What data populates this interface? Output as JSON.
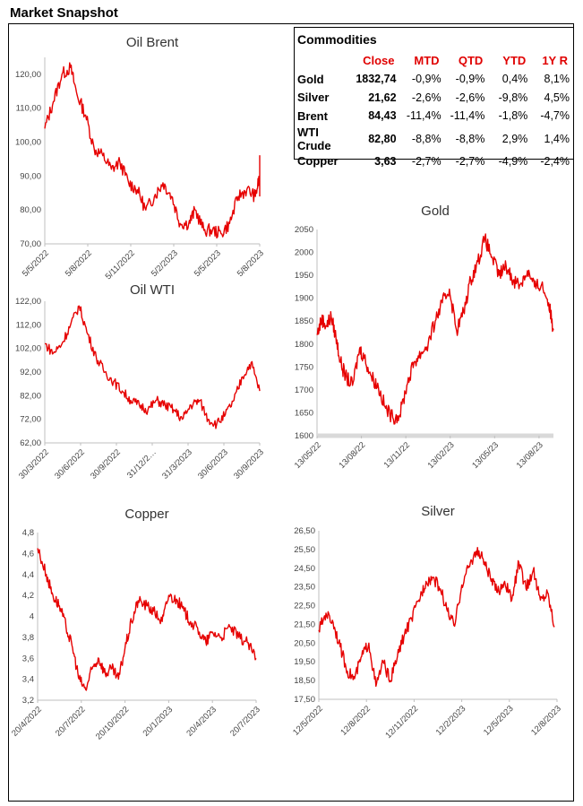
{
  "page_title": "Market Snapshot",
  "table": {
    "title": "Commodities",
    "headers": [
      "",
      "Close",
      "MTD",
      "QTD",
      "YTD",
      "1Y R"
    ],
    "rows": [
      {
        "name": "Gold",
        "close": "1832,74",
        "mtd": "-0,9%",
        "qtd": "-0,9%",
        "ytd": "0,4%",
        "r1y": "8,1%"
      },
      {
        "name": "Silver",
        "close": "21,62",
        "mtd": "-2,6%",
        "qtd": "-2,6%",
        "ytd": "-9,8%",
        "r1y": "4,5%"
      },
      {
        "name": "Brent",
        "close": "84,43",
        "mtd": "-11,4%",
        "qtd": "-11,4%",
        "ytd": "-1,8%",
        "r1y": "-4,7%"
      },
      {
        "name": "WTI Crude",
        "close": "82,80",
        "mtd": "-8,8%",
        "qtd": "-8,8%",
        "ytd": "2,9%",
        "r1y": "1,4%"
      },
      {
        "name": "Copper",
        "close": "3,63",
        "mtd": "-2,7%",
        "qtd": "-2,7%",
        "ytd": "-4,9%",
        "r1y": "-2,4%"
      }
    ]
  },
  "colors": {
    "series": "#e60000",
    "axis": "#bfbfbf",
    "table_header": "#e00000"
  },
  "chart_data": [
    {
      "id": "brent",
      "type": "line",
      "title": "Oil Brent",
      "ylim": [
        70,
        125
      ],
      "y_ticks": [
        "120,00",
        "110,00",
        "100,00",
        "90,00",
        "80,00",
        "70,00"
      ],
      "y_tick_values": [
        120,
        110,
        100,
        90,
        80,
        70
      ],
      "x_ticks": [
        "5/5/2022",
        "5/8/2022",
        "5/11/2022",
        "5/2/2023",
        "5/5/2023",
        "5/8/2023"
      ],
      "x_tick_pos": [
        0.0,
        0.2,
        0.4,
        0.6,
        0.8,
        1.0
      ],
      "xfrac": [
        0,
        0.04,
        0.08,
        0.12,
        0.15,
        0.19,
        0.23,
        0.27,
        0.31,
        0.35,
        0.39,
        0.43,
        0.47,
        0.51,
        0.55,
        0.59,
        0.63,
        0.67,
        0.7,
        0.74,
        0.78,
        0.82,
        0.86,
        0.9,
        0.94,
        0.98,
        1.1,
        1.14,
        1.2
      ],
      "y": [
        104,
        112,
        120,
        122,
        114,
        108,
        98,
        96,
        92,
        94,
        88,
        86,
        80,
        84,
        88,
        84,
        76,
        76,
        80,
        74,
        74,
        73,
        76,
        84,
        86,
        84,
        90,
        96,
        84
      ]
    },
    {
      "id": "wti",
      "type": "line",
      "title": "Oil WTI",
      "ylim": [
        62,
        122
      ],
      "y_ticks": [
        "122,00",
        "112,00",
        "102,00",
        "92,00",
        "82,00",
        "72,00",
        "62,00"
      ],
      "y_tick_values": [
        122,
        112,
        102,
        92,
        82,
        72,
        62
      ],
      "x_ticks": [
        "30/3/2022",
        "30/6/2022",
        "30/9/2022",
        "31/12/2…",
        "31/3/2023",
        "30/6/2023",
        "30/9/2023"
      ],
      "x_tick_pos": [
        0.0,
        0.1667,
        0.3333,
        0.5,
        0.6667,
        0.8333,
        1.0
      ],
      "xfrac": [
        0,
        0.04,
        0.08,
        0.12,
        0.16,
        0.2,
        0.24,
        0.28,
        0.32,
        0.36,
        0.4,
        0.44,
        0.48,
        0.52,
        0.56,
        0.6,
        0.64,
        0.68,
        0.72,
        0.76,
        0.8,
        0.84,
        0.88,
        0.92,
        0.96,
        1.0
      ],
      "y": [
        104,
        100,
        104,
        112,
        120,
        108,
        98,
        92,
        88,
        84,
        80,
        78,
        76,
        80,
        78,
        76,
        72,
        78,
        80,
        72,
        70,
        74,
        80,
        90,
        96,
        84
      ]
    },
    {
      "id": "gold",
      "type": "line",
      "title": "Gold",
      "ylim": [
        1600,
        2050
      ],
      "y_ticks": [
        "2050",
        "2000",
        "1950",
        "1900",
        "1850",
        "1800",
        "1750",
        "1700",
        "1650",
        "1600"
      ],
      "y_tick_values": [
        2050,
        2000,
        1950,
        1900,
        1850,
        1800,
        1750,
        1700,
        1650,
        1600
      ],
      "x_ticks": [
        "13/05/22",
        "13/08/22",
        "13/11/22",
        "13/02/23",
        "13/05/23",
        "13/08/23"
      ],
      "x_tick_pos": [
        0.0,
        0.1878,
        0.3756,
        0.5634,
        0.7512,
        0.939
      ],
      "xfrac": [
        0,
        0.02,
        0.04,
        0.06,
        0.08,
        0.1,
        0.12,
        0.15,
        0.18,
        0.2,
        0.23,
        0.26,
        0.29,
        0.32,
        0.35,
        0.38,
        0.41,
        0.44,
        0.47,
        0.5,
        0.53,
        0.56,
        0.59,
        0.62,
        0.65,
        0.68,
        0.71,
        0.74,
        0.77,
        0.8,
        0.83,
        0.86,
        0.89,
        0.92,
        0.95,
        0.98,
        1.0
      ],
      "y": [
        1820,
        1855,
        1840,
        1860,
        1815,
        1760,
        1730,
        1710,
        1790,
        1770,
        1730,
        1705,
        1660,
        1640,
        1645,
        1710,
        1760,
        1780,
        1800,
        1850,
        1890,
        1920,
        1830,
        1870,
        1940,
        1980,
        2030,
        1990,
        1950,
        1970,
        1940,
        1930,
        1960,
        1925,
        1930,
        1890,
        1830
      ]
    },
    {
      "id": "copper",
      "type": "line",
      "title": "Copper",
      "ylim": [
        3.2,
        4.8
      ],
      "y_ticks": [
        "4,8",
        "4,6",
        "4,4",
        "4,2",
        "4",
        "3,8",
        "3,6",
        "3,4",
        "3,2"
      ],
      "y_tick_values": [
        4.8,
        4.6,
        4.4,
        4.2,
        4.0,
        3.8,
        3.6,
        3.4,
        3.2
      ],
      "x_ticks": [
        "20/4/2022",
        "20/7/2022",
        "20/10/2022",
        "20/1/2023",
        "20/4/2023",
        "20/7/2023"
      ],
      "x_tick_pos": [
        0.0,
        0.2,
        0.4,
        0.6,
        0.8,
        1.0
      ],
      "xfrac": [
        0,
        0.04,
        0.07,
        0.1,
        0.13,
        0.16,
        0.19,
        0.22,
        0.25,
        0.28,
        0.31,
        0.34,
        0.37,
        0.4,
        0.43,
        0.46,
        0.5,
        0.53,
        0.57,
        0.6,
        0.64,
        0.67,
        0.7,
        0.74,
        0.77,
        0.8,
        0.84,
        0.88,
        0.92,
        0.96,
        1.0
      ],
      "y": [
        4.65,
        4.4,
        4.2,
        4.1,
        3.9,
        3.7,
        3.4,
        3.3,
        3.5,
        3.6,
        3.45,
        3.5,
        3.4,
        3.7,
        3.95,
        4.15,
        4.1,
        4.05,
        3.95,
        4.2,
        4.15,
        4.05,
        3.95,
        3.85,
        3.75,
        3.85,
        3.8,
        3.9,
        3.8,
        3.75,
        3.6
      ]
    },
    {
      "id": "silver",
      "type": "line",
      "title": "Silver",
      "ylim": [
        17.5,
        26.5
      ],
      "y_ticks": [
        "26,50",
        "25,50",
        "24,50",
        "23,50",
        "22,50",
        "21,50",
        "20,50",
        "19,50",
        "18,50",
        "17,50"
      ],
      "y_tick_values": [
        26.5,
        25.5,
        24.5,
        23.5,
        22.5,
        21.5,
        20.5,
        19.5,
        18.5,
        17.5
      ],
      "x_ticks": [
        "12/5/2022",
        "12/8/2022",
        "12/11/2022",
        "12/2/2023",
        "12/5/2023",
        "12/8/2023"
      ],
      "x_tick_pos": [
        0.0,
        0.2,
        0.4,
        0.6,
        0.8,
        1.0
      ],
      "xfrac": [
        0,
        0.03,
        0.06,
        0.09,
        0.12,
        0.15,
        0.18,
        0.21,
        0.24,
        0.27,
        0.3,
        0.33,
        0.36,
        0.39,
        0.42,
        0.45,
        0.48,
        0.51,
        0.54,
        0.57,
        0.6,
        0.63,
        0.66,
        0.69,
        0.72,
        0.75,
        0.78,
        0.81,
        0.84,
        0.87,
        0.9,
        0.93,
        0.96,
        0.99
      ],
      "y": [
        21.2,
        22.1,
        21.6,
        20.3,
        19.0,
        18.6,
        19.8,
        20.5,
        18.2,
        19.5,
        18.5,
        19.8,
        21.0,
        21.8,
        22.8,
        23.8,
        24.0,
        23.4,
        22.2,
        21.4,
        23.6,
        24.6,
        25.4,
        25.0,
        24.0,
        23.2,
        23.8,
        22.8,
        24.8,
        23.4,
        24.4,
        22.8,
        23.2,
        21.4
      ]
    }
  ]
}
